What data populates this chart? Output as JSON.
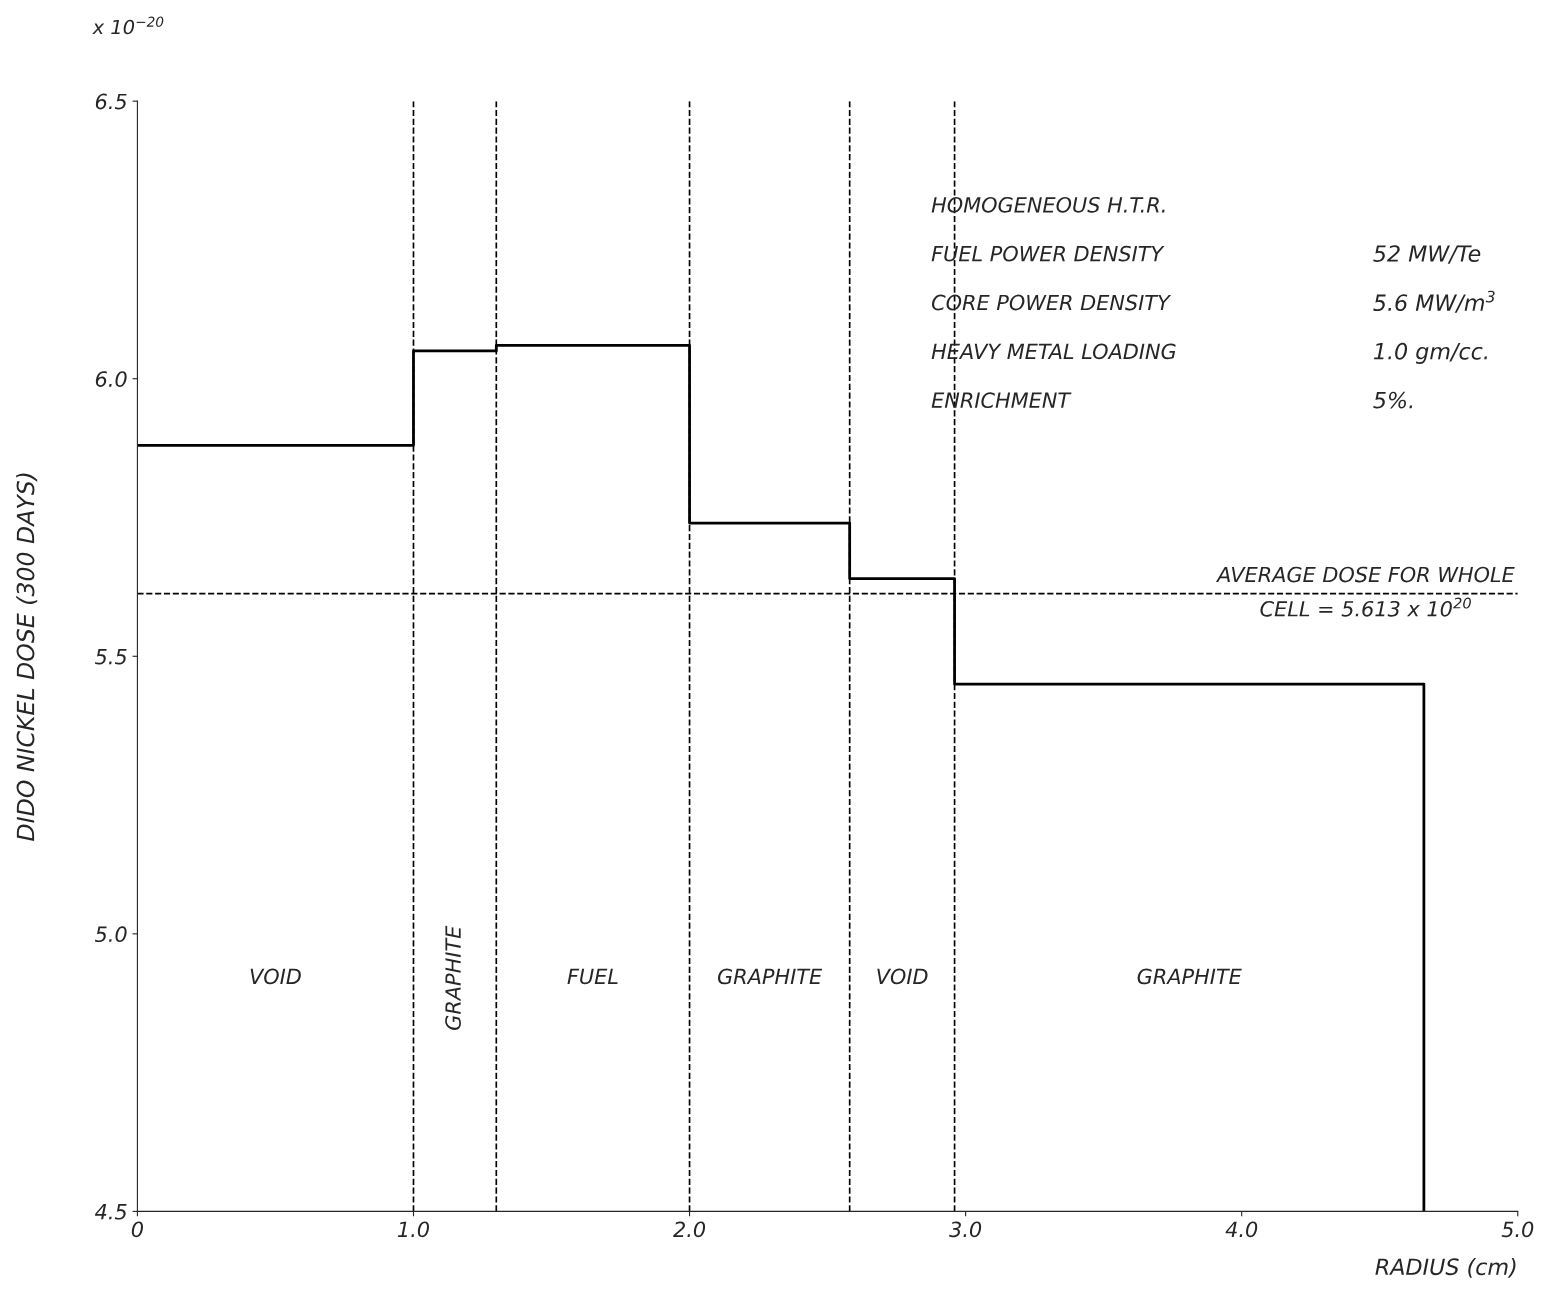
{
  "chart_data": {
    "type": "step",
    "xlabel": "RADIUS (cm)",
    "ylabel": "DIDO NICKEL DOSE (300 DAYS)",
    "x": [
      0,
      1.0,
      1.3,
      2.0,
      2.58,
      2.96,
      4.66
    ],
    "values": [
      5.88,
      6.05,
      6.06,
      5.74,
      5.64,
      5.45,
      4.5
    ],
    "color": "#000000",
    "xlim": [
      0,
      5.0
    ],
    "ylim": [
      4.5,
      6.5
    ],
    "xticks": [
      {
        "value": 0,
        "label": "0"
      },
      {
        "value": 1.0,
        "label": "1.0"
      },
      {
        "value": 2.0,
        "label": "2.0"
      },
      {
        "value": 3.0,
        "label": "3.0"
      },
      {
        "value": 4.0,
        "label": "4.0"
      },
      {
        "value": 5.0,
        "label": "5.0"
      }
    ],
    "yticks": [
      {
        "value": 4.5,
        "label": "4.5"
      },
      {
        "value": 5.0,
        "label": "5.0"
      },
      {
        "value": 5.5,
        "label": "5.5"
      },
      {
        "value": 6.0,
        "label": "6.0"
      },
      {
        "value": 6.5,
        "label": "6.5"
      }
    ],
    "ref_lines": [
      {
        "axis": "y",
        "value": 5.613,
        "label": "AVERAGE DOSE FOR WHOLE\nCELL = 5.613 x 10$^{20}$",
        "line_style": "dashed"
      },
      {
        "axis": "x",
        "value": 1.0,
        "line_style": "dashed"
      },
      {
        "axis": "x",
        "value": 1.3,
        "line_style": "dashed"
      },
      {
        "axis": "x",
        "value": 2.0,
        "line_style": "dashed"
      },
      {
        "axis": "x",
        "value": 2.58,
        "line_style": "dashed"
      },
      {
        "axis": "x",
        "value": 2.96,
        "line_style": "dashed"
      }
    ],
    "annotations": [
      "x 10$^{−20}$",
      "HOMOGENEOUS H.T.R.",
      "FUEL POWER DENSITY",
      "52 MW/Te",
      "CORE POWER DENSITY",
      "5.6 MW/m$^{3}$",
      "HEAVY METAL LOADING",
      "1.0 gm/cc.",
      "ENRICHMENT",
      "5%.",
      "VOID",
      "GRAPHITE",
      "FUEL",
      "GRAPHITE",
      "VOID",
      "GRAPHITE"
    ],
    "grid": false,
    "legend": false,
    "line_style": "solid",
    "marker": "none"
  }
}
